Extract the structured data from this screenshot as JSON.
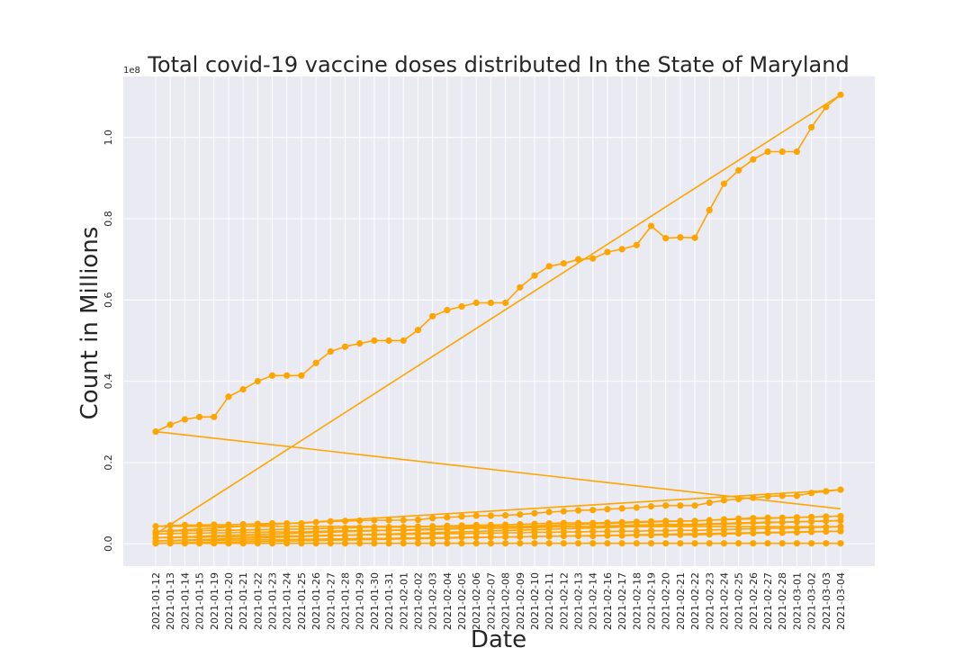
{
  "chart_data": {
    "type": "line",
    "title": "Total covid-19 vaccine doses distributed In the State of Maryland",
    "xlabel": "Date",
    "ylabel": "Count in Millions",
    "y_multiplier_label": "1e8",
    "ylim": [
      -5500000,
      115000000
    ],
    "y_ticks": [
      0,
      20000000,
      40000000,
      60000000,
      80000000,
      100000000
    ],
    "y_tick_labels": [
      "0.0",
      "0.2",
      "0.4",
      "0.6",
      "0.8",
      "1.0"
    ],
    "grid": true,
    "color": "#FFA500",
    "categories": [
      "2021-01-12",
      "2021-01-13",
      "2021-01-14",
      "2021-01-15",
      "2021-01-19",
      "2021-01-20",
      "2021-01-21",
      "2021-01-22",
      "2021-01-23",
      "2021-01-24",
      "2021-01-25",
      "2021-01-26",
      "2021-01-27",
      "2021-01-28",
      "2021-01-29",
      "2021-01-30",
      "2021-01-31",
      "2021-02-01",
      "2021-02-02",
      "2021-02-03",
      "2021-02-04",
      "2021-02-05",
      "2021-02-06",
      "2021-02-07",
      "2021-02-08",
      "2021-02-09",
      "2021-02-10",
      "2021-02-11",
      "2021-02-12",
      "2021-02-13",
      "2021-02-14",
      "2021-02-16",
      "2021-02-17",
      "2021-02-18",
      "2021-02-19",
      "2021-02-20",
      "2021-02-21",
      "2021-02-22",
      "2021-02-23",
      "2021-02-24",
      "2021-02-25",
      "2021-02-26",
      "2021-02-27",
      "2021-02-28",
      "2021-03-01",
      "2021-03-02",
      "2021-03-03",
      "2021-03-04"
    ],
    "series": [
      {
        "values": [
          27600000,
          29300000,
          30600000,
          31200000,
          31200000,
          36200000,
          38000000,
          40000000,
          41400000,
          41400000,
          41400000,
          44500000,
          47300000,
          48500000,
          49300000,
          50000000,
          50000000,
          50000000,
          52600000,
          56000000,
          57500000,
          58400000,
          59300000,
          59300000,
          59300000,
          63100000,
          66000000,
          68300000,
          69000000,
          70000000,
          70200000,
          71800000,
          72500000,
          73500000,
          78200000,
          75200000,
          75400000,
          75300000,
          82100000,
          88600000,
          91900000,
          94600000,
          96500000,
          96500000,
          96500000,
          102500000,
          107500000,
          110500000
        ]
      },
      {
        "values": [
          4300000,
          4500000,
          4600000,
          4600000,
          4700000,
          4700000,
          4800000,
          4900000,
          5000000,
          5000000,
          5000000,
          5300000,
          5500000,
          5600000,
          5700000,
          5800000,
          5800000,
          5800000,
          5900000,
          6300000,
          6500000,
          6700000,
          6900000,
          6900000,
          7000000,
          7200000,
          7500000,
          7800000,
          8000000,
          8200000,
          8300000,
          8500000,
          8700000,
          8900000,
          9200000,
          9400000,
          9400000,
          9400000,
          10100000,
          10700000,
          11000000,
          11300000,
          11700000,
          11800000,
          11800000,
          12500000,
          12900000,
          13300000
        ]
      },
      {
        "values": [
          3000000,
          3100000,
          3200000,
          3200000,
          3300000,
          3300000,
          3400000,
          3500000,
          3500000,
          3600000,
          3600000,
          3700000,
          3800000,
          3900000,
          4000000,
          4100000,
          4100000,
          4100000,
          4200000,
          4300000,
          4400000,
          4500000,
          4600000,
          4600000,
          4700000,
          4800000,
          4900000,
          5000000,
          5100000,
          5100000,
          5100000,
          5200000,
          5300000,
          5400000,
          5500000,
          5600000,
          5600000,
          5600000,
          5800000,
          6000000,
          6200000,
          6300000,
          6400000,
          6400000,
          6500000,
          6600000,
          6700000,
          6800000
        ]
      },
      {
        "values": [
          2400000,
          2500000,
          2600000,
          2600000,
          2700000,
          2700000,
          2800000,
          2800000,
          2900000,
          2900000,
          2900000,
          3000000,
          3100000,
          3200000,
          3200000,
          3300000,
          3300000,
          3300000,
          3400000,
          3500000,
          3600000,
          3700000,
          3800000,
          3800000,
          3800000,
          3900000,
          4000000,
          4100000,
          4200000,
          4200000,
          4300000,
          4400000,
          4500000,
          4600000,
          4700000,
          4800000,
          4800000,
          4800000,
          4900000,
          5000000,
          5100000,
          5200000,
          5300000,
          5300000,
          5400000,
          5500000,
          5600000,
          5700000
        ]
      },
      {
        "values": [
          1500000,
          1500000,
          1600000,
          1600000,
          1700000,
          1700000,
          1800000,
          1800000,
          1900000,
          1900000,
          1900000,
          2000000,
          2100000,
          2100000,
          2200000,
          2200000,
          2300000,
          2300000,
          2400000,
          2400000,
          2500000,
          2500000,
          2600000,
          2600000,
          2700000,
          2700000,
          2800000,
          2800000,
          2900000,
          2900000,
          3000000,
          3000000,
          3100000,
          3100000,
          3200000,
          3200000,
          3300000,
          3300000,
          3400000,
          3500000,
          3600000,
          3700000,
          3800000,
          3800000,
          3900000,
          4000000,
          4100000,
          4200000
        ]
      },
      {
        "values": [
          700000,
          700000,
          800000,
          800000,
          800000,
          900000,
          900000,
          1000000,
          1000000,
          1000000,
          1100000,
          1100000,
          1200000,
          1200000,
          1300000,
          1300000,
          1300000,
          1400000,
          1400000,
          1500000,
          1500000,
          1600000,
          1600000,
          1600000,
          1700000,
          1700000,
          1800000,
          1800000,
          1900000,
          1900000,
          1900000,
          2000000,
          2000000,
          2100000,
          2100000,
          2200000,
          2200000,
          2200000,
          2300000,
          2400000,
          2500000,
          2600000,
          2700000,
          2700000,
          2800000,
          2900000,
          3000000,
          3100000
        ]
      },
      {
        "values": [
          100000,
          100000,
          100000,
          100000,
          100000,
          100000,
          100000,
          100000,
          100000,
          100000,
          100000,
          100000,
          100000,
          100000,
          100000,
          100000,
          100000,
          100000,
          100000,
          100000,
          100000,
          100000,
          100000,
          100000,
          100000,
          100000,
          100000,
          100000,
          100000,
          100000,
          100000,
          100000,
          100000,
          100000,
          100000,
          100000,
          100000,
          100000,
          100000,
          100000,
          100000,
          100000,
          100000,
          100000,
          100000,
          100000,
          100000,
          100000
        ]
      }
    ],
    "connectors": [
      {
        "from": [
          47,
          13300000
        ],
        "to": [
          0,
          3000000
        ]
      },
      {
        "from": [
          47,
          110500000
        ],
        "to": [
          0,
          2400000
        ]
      },
      {
        "from": [
          47,
          8600000
        ],
        "to": [
          0,
          27600000
        ]
      },
      {
        "from": [
          47,
          6800000
        ],
        "to": [
          0,
          1500000
        ]
      },
      {
        "from": [
          47,
          5700000
        ],
        "to": [
          0,
          700000
        ]
      },
      {
        "from": [
          47,
          4200000
        ],
        "to": [
          0,
          4300000
        ]
      },
      {
        "from": [
          47,
          3100000
        ],
        "to": [
          0,
          100000
        ]
      }
    ]
  }
}
